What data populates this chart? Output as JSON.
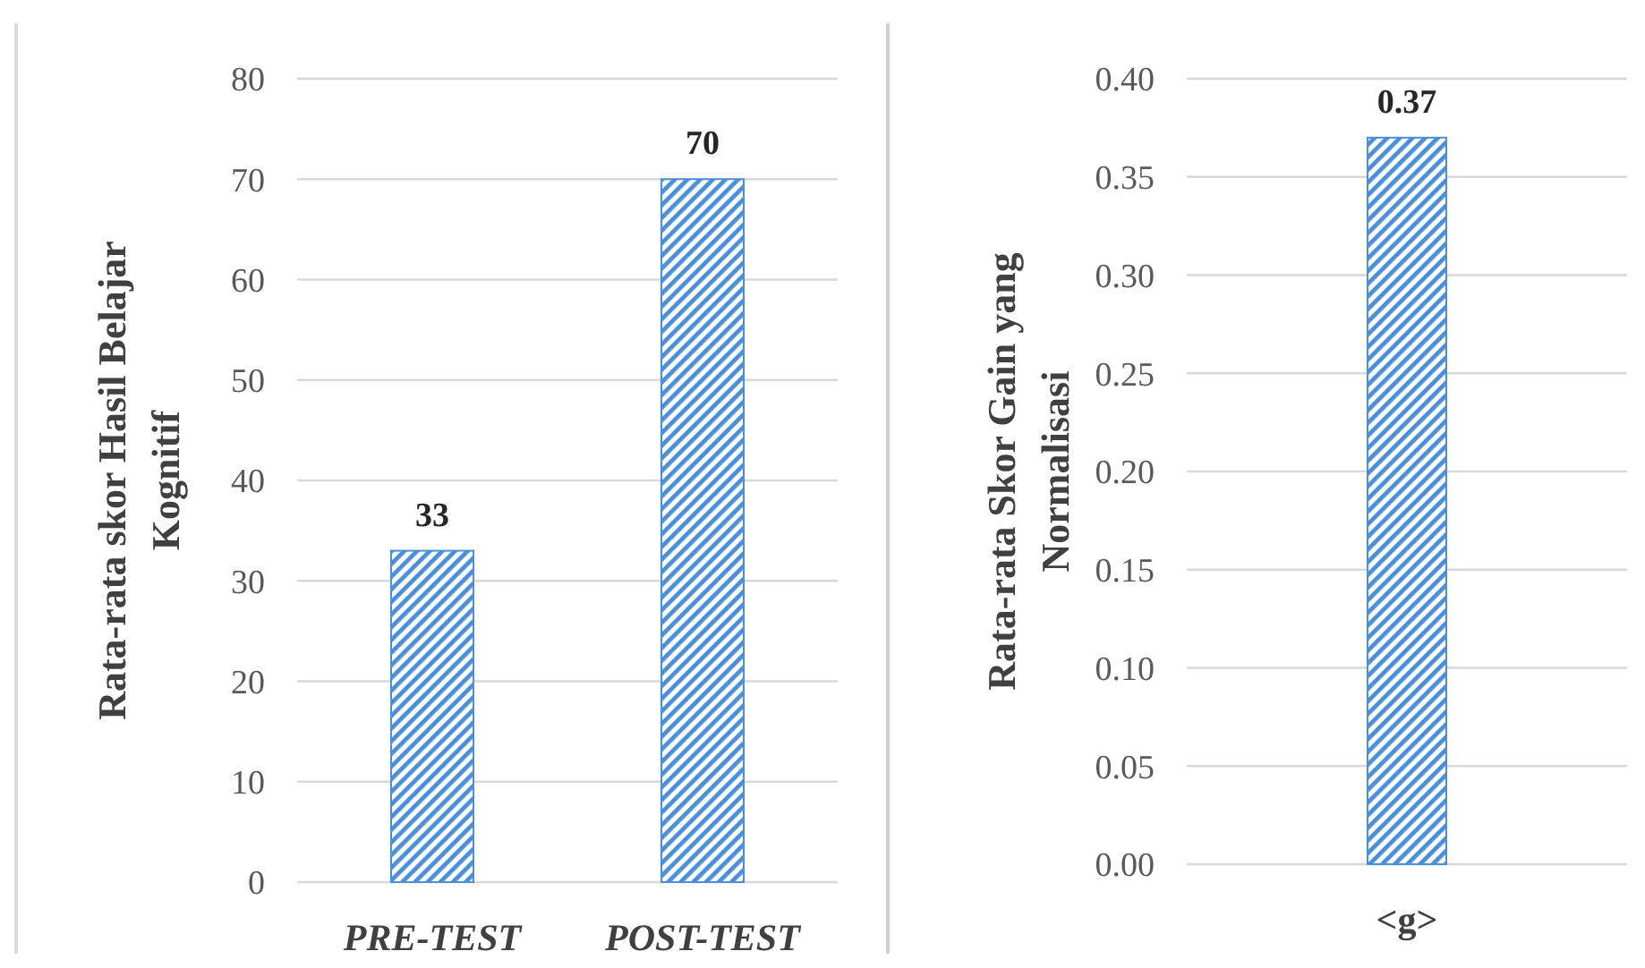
{
  "chart_data": [
    {
      "type": "bar",
      "categories": [
        "PRE-TEST",
        "POST-TEST"
      ],
      "values": [
        33,
        70
      ],
      "color": "#4a8fd8",
      "ylabel": "Rata-rata skor Hasil Belajar Kognitif",
      "ylim": [
        0,
        80
      ],
      "yticks": [
        0,
        10,
        20,
        30,
        40,
        50,
        60,
        70,
        80
      ],
      "grid": "y",
      "data_labels": true
    },
    {
      "type": "bar",
      "categories": [
        "<g>"
      ],
      "values": [
        0.37
      ],
      "color": "#4a8fd8",
      "ylabel": "Rata-rata Skor Gain yang Normalisasi",
      "ylim": [
        0,
        0.4
      ],
      "yticks": [
        {
          "value": 0,
          "label": "0.00"
        },
        {
          "value": 0.05,
          "label": "0.05"
        },
        {
          "value": 0.1,
          "label": "0.10"
        },
        {
          "value": 0.15,
          "label": "0.15"
        },
        {
          "value": 0.2,
          "label": "0.20"
        },
        {
          "value": 0.25,
          "label": "0.25"
        },
        {
          "value": 0.3,
          "label": "0.30"
        },
        {
          "value": 0.35,
          "label": "0.35"
        },
        {
          "value": 0.4,
          "label": "0.40"
        }
      ],
      "grid": "y",
      "data_labels": true
    }
  ]
}
